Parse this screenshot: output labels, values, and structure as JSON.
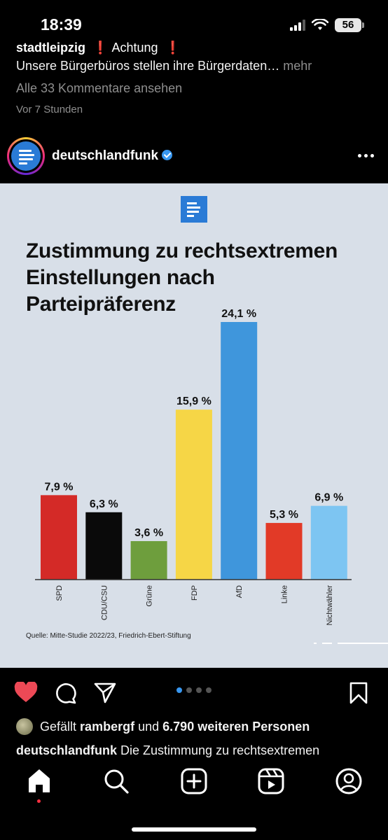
{
  "status_bar": {
    "time": "18:39",
    "battery": "56",
    "icons": [
      "cellular-signal-icon",
      "wifi-icon",
      "battery-icon"
    ]
  },
  "previous_post": {
    "caption_user": "stadtleipzig",
    "caption_alert": "Achtung",
    "caption_text": "Unsere Bürgerbüros stellen ihre Bürgerdaten…",
    "more_label": "mehr",
    "comments_link": "Alle 33 Kommentare ansehen",
    "time_ago": "Vor 7 Stunden"
  },
  "post": {
    "username": "deutschlandfunk",
    "verified": true,
    "image": {
      "source": "Quelle: Mitte-Studie 2022/23, Friedrich-Ebert-Stiftung"
    },
    "likes": {
      "prefix": "Gefällt",
      "user": "rambergf",
      "middle": "und",
      "count": "6.790 weiteren Personen"
    },
    "caption_user": "deutschlandfunk",
    "caption_text": "Die Zustimmung zu rechtsextremen",
    "carousel": {
      "count": 4,
      "active": 0
    }
  },
  "colors": {
    "like_red": "#ed4956",
    "accent_blue": "#3897f0",
    "image_bg": "#d8dfe8"
  },
  "chart_data": {
    "type": "bar",
    "title": "Zustimmung zu rechtsextremen Einstellungen nach Parteipräferenz",
    "categories": [
      "SPD",
      "CDU/CSU",
      "Grüne",
      "FDP",
      "AfD",
      "Linke",
      "Nichtwähler"
    ],
    "values": [
      7.9,
      6.3,
      3.6,
      15.9,
      24.1,
      5.3,
      6.9
    ],
    "value_labels": [
      "7,9 %",
      "6,3 %",
      "3,6 %",
      "15,9 %",
      "24,1 %",
      "5,3 %",
      "6,9 %"
    ],
    "colors": [
      "#d42a27",
      "#0a0a0a",
      "#6e9e3d",
      "#f6d646",
      "#3f96dc",
      "#e23a27",
      "#7dc5f2"
    ],
    "ylim": [
      0,
      24.1
    ],
    "grid": false,
    "legend": "none"
  },
  "bottom_nav": [
    "home-icon",
    "search-icon",
    "create-icon",
    "reels-icon",
    "profile-icon"
  ]
}
